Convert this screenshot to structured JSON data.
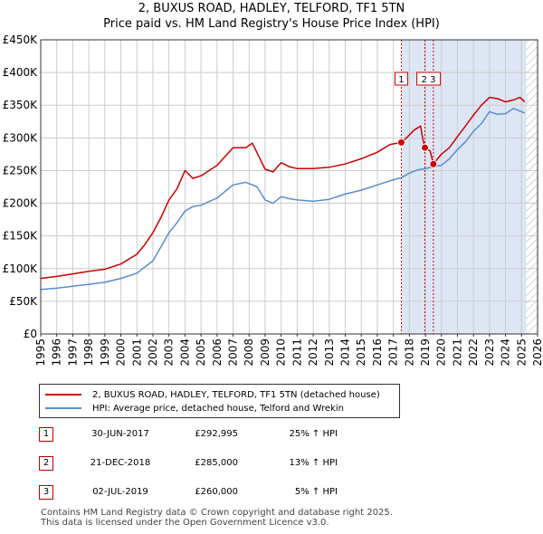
{
  "chart_data": {
    "type": "line",
    "title": "2, BUXUS ROAD, HADLEY, TELFORD, TF1 5TN",
    "subtitle": "Price paid vs. HM Land Registry's House Price Index (HPI)",
    "xlabel": "",
    "ylabel": "",
    "xlim": [
      1995,
      2026
    ],
    "ylim": [
      0,
      450000
    ],
    "x_ticks": [
      "1995",
      "1996",
      "1997",
      "1998",
      "1999",
      "2000",
      "2001",
      "2002",
      "2003",
      "2004",
      "2005",
      "2006",
      "2007",
      "2008",
      "2009",
      "2010",
      "2011",
      "2012",
      "2013",
      "2014",
      "2015",
      "2016",
      "2017",
      "2018",
      "2019",
      "2020",
      "2021",
      "2022",
      "2023",
      "2024",
      "2025",
      "2026"
    ],
    "y_ticks": [
      {
        "value": 0,
        "label": "£0"
      },
      {
        "value": 50000,
        "label": "£50K"
      },
      {
        "value": 100000,
        "label": "£100K"
      },
      {
        "value": 150000,
        "label": "£150K"
      },
      {
        "value": 200000,
        "label": "£200K"
      },
      {
        "value": 250000,
        "label": "£250K"
      },
      {
        "value": 300000,
        "label": "£300K"
      },
      {
        "value": 350000,
        "label": "£350K"
      },
      {
        "value": 400000,
        "label": "£400K"
      },
      {
        "value": 450000,
        "label": "£450K"
      }
    ],
    "grid": true,
    "legend_position": "bottom-left",
    "shaded_periods": [
      [
        2017.5,
        2025.3
      ]
    ],
    "hatched_period": [
      2025.3,
      2026
    ],
    "series": [
      {
        "name": "2, BUXUS ROAD, HADLEY, TELFORD, TF1 5TN (detached house)",
        "color": "#cc0000",
        "x": [
          1995.0,
          1996.0,
          1997.0,
          1998.0,
          1999.0,
          2000.0,
          2001.0,
          2001.5,
          2002.0,
          2002.5,
          2003.0,
          2003.5,
          2004.0,
          2004.5,
          2005.0,
          2006.0,
          2007.0,
          2007.8,
          2008.2,
          2008.6,
          2009.0,
          2009.5,
          2010.0,
          2010.5,
          2011.0,
          2012.0,
          2013.0,
          2014.0,
          2015.0,
          2016.0,
          2016.8,
          2017.5,
          2017.9,
          2018.3,
          2018.7,
          2018.85,
          2018.97,
          2019.3,
          2019.5,
          2020.0,
          2020.5,
          2021.0,
          2021.5,
          2022.0,
          2022.5,
          2023.0,
          2023.5,
          2024.0,
          2024.5,
          2024.9,
          2025.2
        ],
        "values": [
          85000,
          88000,
          92000,
          96000,
          99000,
          107000,
          122000,
          137000,
          155000,
          178000,
          205000,
          222000,
          250000,
          238000,
          242000,
          258000,
          285000,
          285000,
          292000,
          272000,
          252000,
          248000,
          262000,
          256000,
          253000,
          253000,
          255000,
          260000,
          268000,
          278000,
          290000,
          292995,
          302000,
          312000,
          318000,
          297000,
          285000,
          280000,
          260000,
          275000,
          285000,
          302000,
          318000,
          335000,
          350000,
          362000,
          360000,
          355000,
          358000,
          362000,
          355000
        ]
      },
      {
        "name": "HPI: Average price, detached house, Telford and Wrekin",
        "color": "#5b8ccc",
        "x": [
          1995.0,
          1996.0,
          1997.0,
          1998.0,
          1999.0,
          2000.0,
          2001.0,
          2002.0,
          2002.5,
          2003.0,
          2003.5,
          2004.0,
          2004.5,
          2005.0,
          2006.0,
          2007.0,
          2007.8,
          2008.5,
          2009.0,
          2009.5,
          2010.0,
          2010.5,
          2011.0,
          2012.0,
          2013.0,
          2014.0,
          2015.0,
          2016.0,
          2017.0,
          2017.5,
          2018.0,
          2018.5,
          2019.0,
          2019.5,
          2020.0,
          2020.5,
          2021.0,
          2021.5,
          2022.0,
          2022.5,
          2023.0,
          2023.5,
          2024.0,
          2024.5,
          2025.0,
          2025.2
        ],
        "values": [
          68000,
          70000,
          73000,
          76000,
          79000,
          85000,
          93000,
          112000,
          133000,
          155000,
          170000,
          188000,
          195000,
          197000,
          208000,
          228000,
          232000,
          225000,
          205000,
          200000,
          210000,
          207000,
          205000,
          203000,
          206000,
          214000,
          220000,
          228000,
          236000,
          239000,
          246000,
          251000,
          253000,
          256000,
          258000,
          268000,
          282000,
          294000,
          310000,
          322000,
          340000,
          336000,
          337000,
          345000,
          340000,
          338000
        ]
      }
    ],
    "sale_markers": [
      {
        "label": "1",
        "x": 2017.5,
        "value": 292995
      },
      {
        "label": "2",
        "x": 2018.97,
        "value": 285000
      },
      {
        "label": "3",
        "x": 2019.5,
        "value": 260000
      }
    ],
    "marker_labels": [
      {
        "text": "1",
        "x": 2017.5
      },
      {
        "text": "2 3",
        "x": 2019.2
      }
    ]
  },
  "legend": {
    "property_label": "2, BUXUS ROAD, HADLEY, TELFORD, TF1 5TN (detached house)",
    "hpi_label": "HPI: Average price, detached house, Telford and Wrekin"
  },
  "sales": [
    {
      "num": "1",
      "date": "30-JUN-2017",
      "price": "£292,995",
      "hpi": "25% ↑ HPI"
    },
    {
      "num": "2",
      "date": "21-DEC-2018",
      "price": "£285,000",
      "hpi": "13% ↑ HPI"
    },
    {
      "num": "3",
      "date": "02-JUL-2019",
      "price": "£260,000",
      "hpi": "5% ↑ HPI"
    }
  ],
  "footer": {
    "line1": "Contains HM Land Registry data © Crown copyright and database right 2025.",
    "line2": "This data is licensed under the Open Government Licence v3.0."
  },
  "colors": {
    "property": "#cc0000",
    "hpi": "#5b8ccc",
    "shade": "#dce6f5",
    "grid": "#cccccc"
  }
}
